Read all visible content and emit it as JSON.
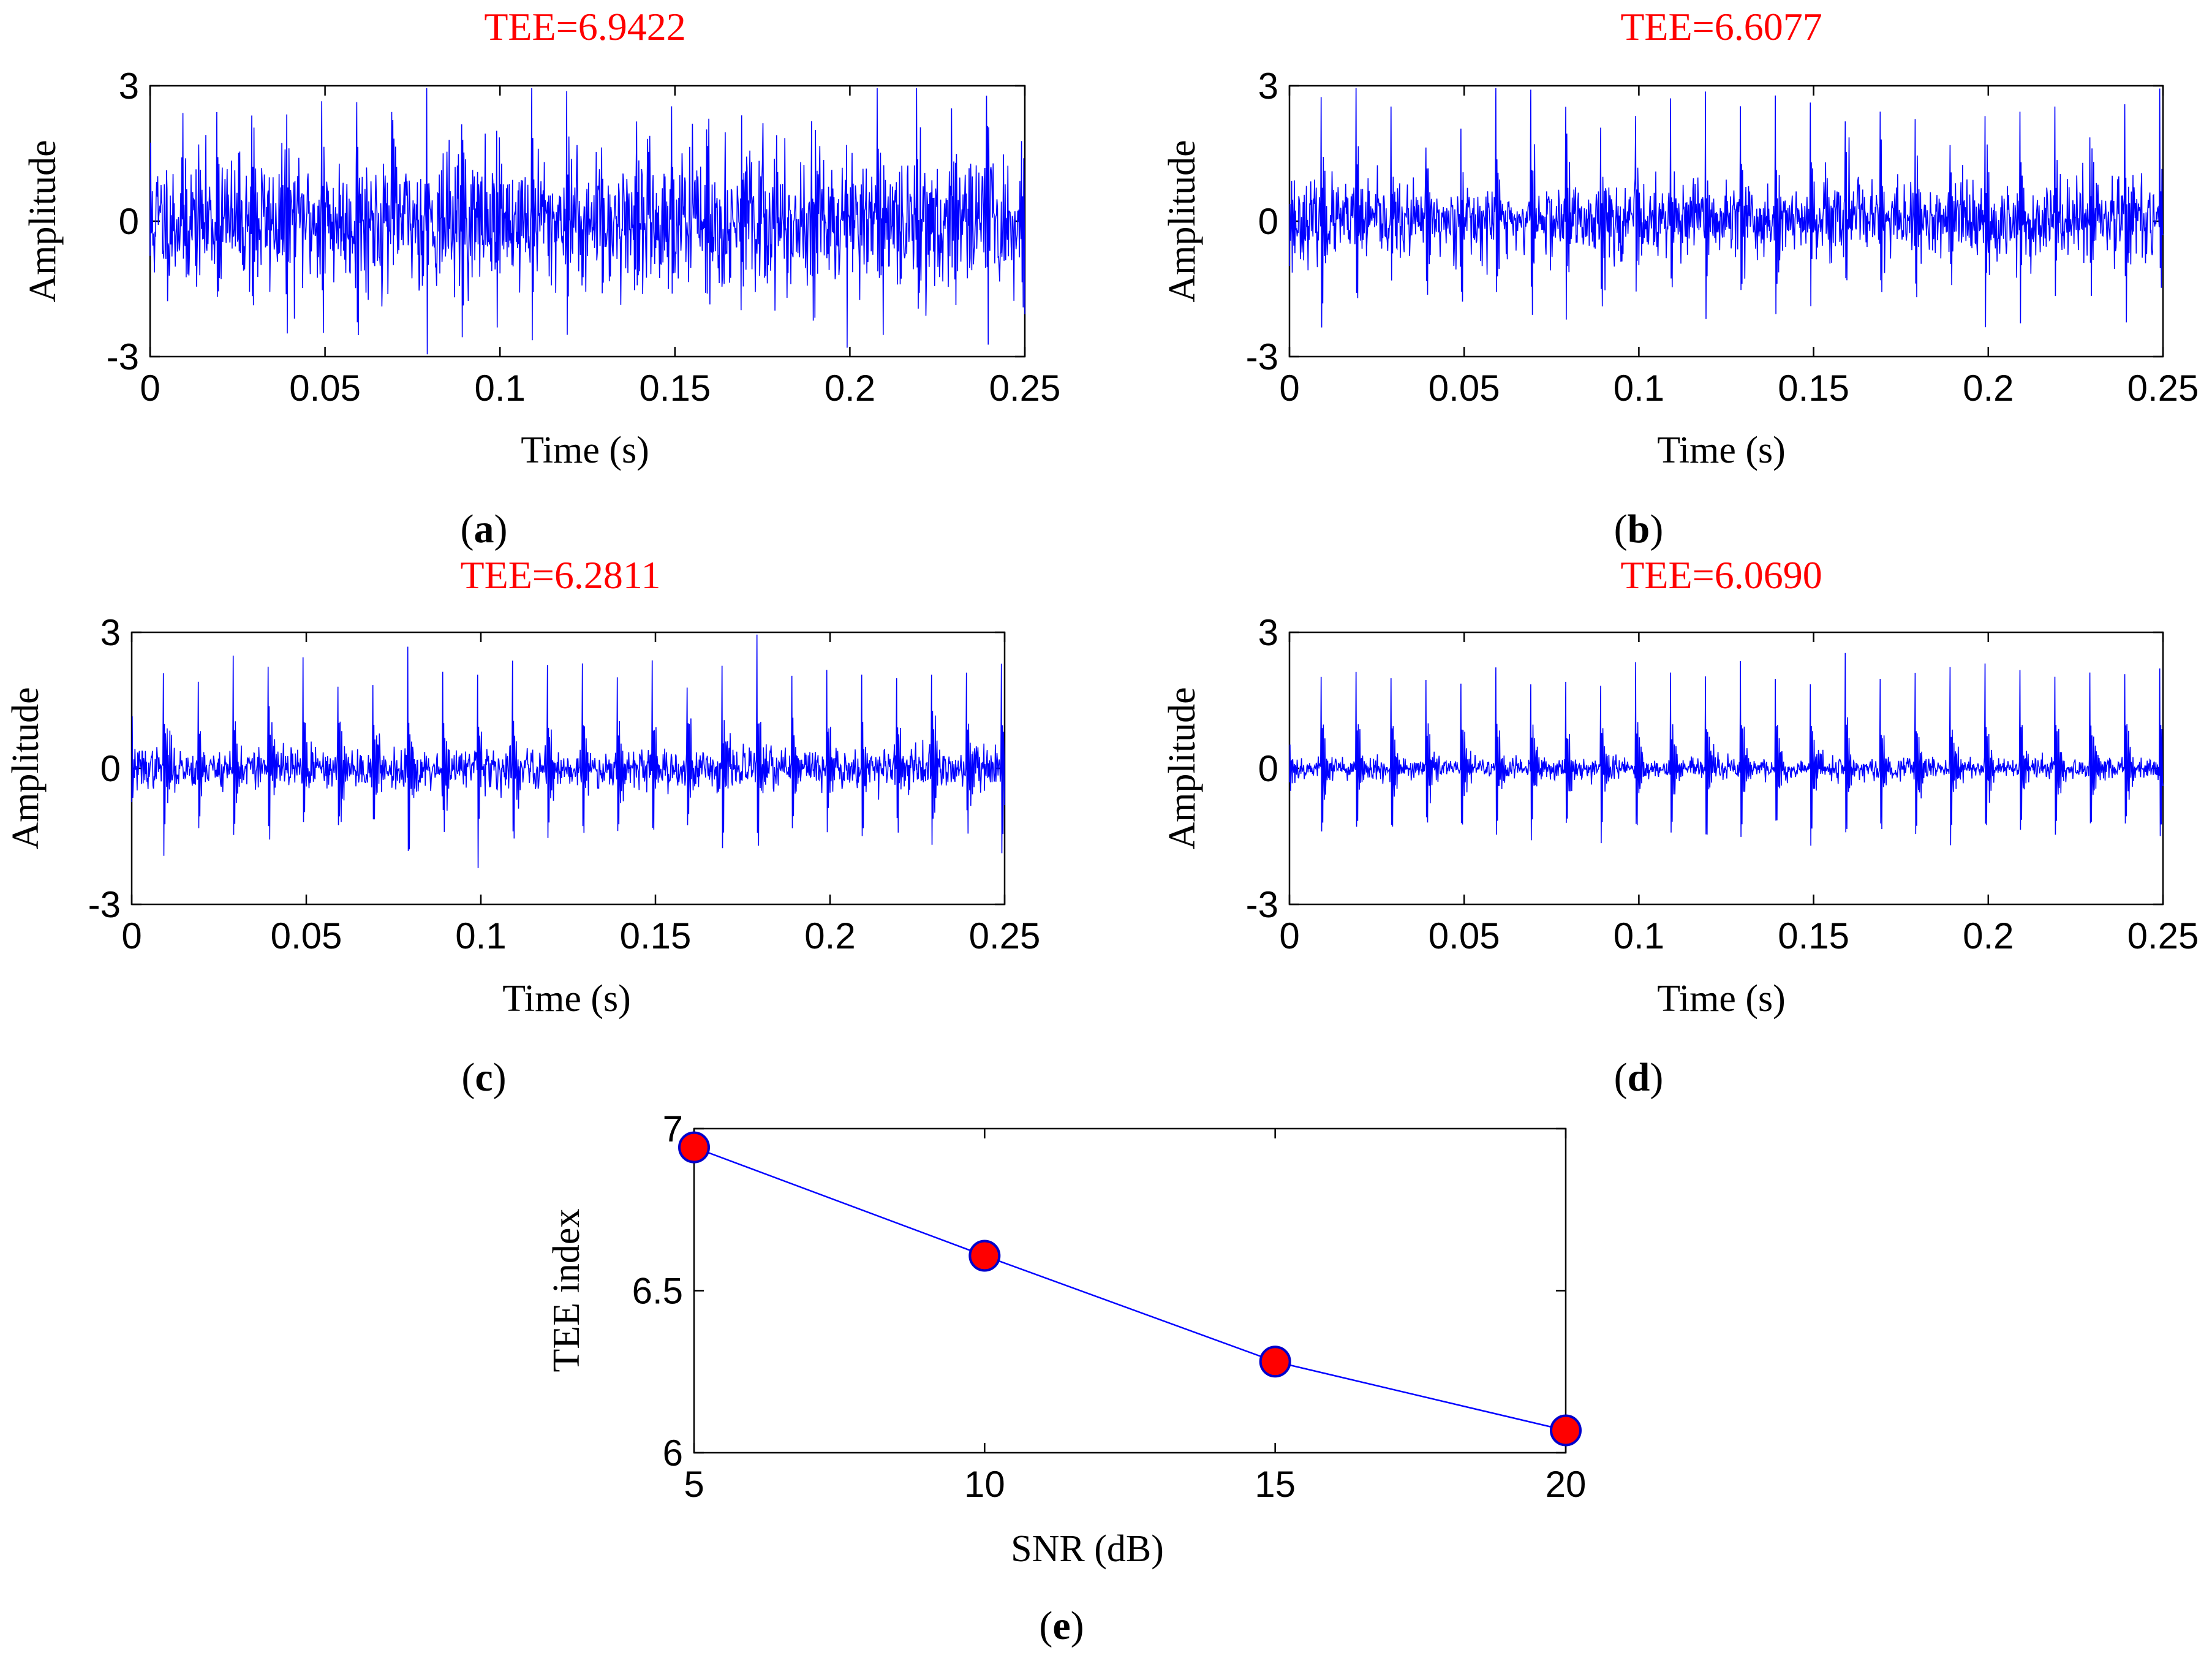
{
  "colors": {
    "title": "#ff0000",
    "signal": "#0000ff",
    "marker_fill": "#ff0000",
    "marker_edge": "#0000cc",
    "axes": "#000000"
  },
  "chart_data": [
    {
      "panel": "(a)",
      "type": "line",
      "title": "TEE=6.9422",
      "xlabel": "Time (s)",
      "ylabel": "Amplitude",
      "xlim": [
        0,
        0.25
      ],
      "ylim": [
        -3,
        3
      ],
      "xticks": [
        "0",
        "0.05",
        "0.1",
        "0.15",
        "0.2",
        "0.25"
      ],
      "yticks": [
        "-3",
        "0",
        "3"
      ],
      "fault_period_s": 0.01,
      "impulse_amplitude": 2.4,
      "noise_std": 0.7,
      "seed": 11
    },
    {
      "panel": "(b)",
      "type": "line",
      "title": "TEE=6.6077",
      "xlabel": "Time (s)",
      "ylabel": "Amplitude",
      "xlim": [
        0,
        0.25
      ],
      "ylim": [
        -3,
        3
      ],
      "xticks": [
        "0",
        "0.05",
        "0.1",
        "0.15",
        "0.2",
        "0.25"
      ],
      "yticks": [
        "-3",
        "0",
        "3"
      ],
      "fault_period_s": 0.01,
      "impulse_amplitude": 2.3,
      "noise_std": 0.4,
      "seed": 23
    },
    {
      "panel": "(c)",
      "type": "line",
      "title": "TEE=6.2811",
      "xlabel": "Time (s)",
      "ylabel": "Amplitude",
      "xlim": [
        0,
        0.25
      ],
      "ylim": [
        -3,
        3
      ],
      "xticks": [
        "0",
        "0.05",
        "0.1",
        "0.15",
        "0.2",
        "0.25"
      ],
      "yticks": [
        "-3",
        "0",
        "3"
      ],
      "fault_period_s": 0.01,
      "impulse_amplitude": 2.1,
      "noise_std": 0.22,
      "seed": 37
    },
    {
      "panel": "(d)",
      "type": "line",
      "title": "TEE=6.0690",
      "xlabel": "Time (s)",
      "ylabel": "Amplitude",
      "xlim": [
        0,
        0.25
      ],
      "ylim": [
        -3,
        3
      ],
      "xticks": [
        "0",
        "0.05",
        "0.1",
        "0.15",
        "0.2",
        "0.25"
      ],
      "yticks": [
        "-3",
        "0",
        "3"
      ],
      "fault_period_s": 0.01,
      "impulse_amplitude": 2.0,
      "noise_std": 0.12,
      "seed": 53
    },
    {
      "panel": "(e)",
      "type": "line",
      "title": "",
      "xlabel": "SNR (dB)",
      "ylabel": "TEE index",
      "xlim": [
        5,
        20
      ],
      "ylim": [
        6,
        7
      ],
      "xticks": [
        "5",
        "10",
        "15",
        "20"
      ],
      "yticks": [
        "6",
        "6.5",
        "7"
      ],
      "x": [
        5,
        10,
        15,
        20
      ],
      "y": [
        6.9422,
        6.6077,
        6.2811,
        6.069
      ]
    }
  ]
}
